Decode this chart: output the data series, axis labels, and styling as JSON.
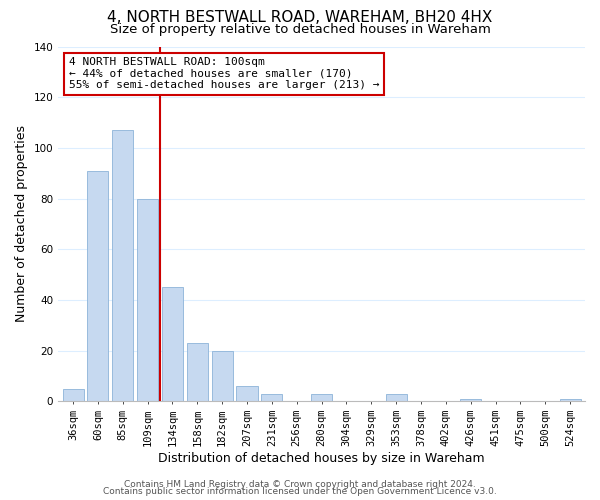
{
  "title": "4, NORTH BESTWALL ROAD, WAREHAM, BH20 4HX",
  "subtitle": "Size of property relative to detached houses in Wareham",
  "xlabel": "Distribution of detached houses by size in Wareham",
  "ylabel": "Number of detached properties",
  "bar_labels": [
    "36sqm",
    "60sqm",
    "85sqm",
    "109sqm",
    "134sqm",
    "158sqm",
    "182sqm",
    "207sqm",
    "231sqm",
    "256sqm",
    "280sqm",
    "304sqm",
    "329sqm",
    "353sqm",
    "378sqm",
    "402sqm",
    "426sqm",
    "451sqm",
    "475sqm",
    "500sqm",
    "524sqm"
  ],
  "bar_values": [
    5,
    91,
    107,
    80,
    45,
    23,
    20,
    6,
    3,
    0,
    3,
    0,
    0,
    3,
    0,
    0,
    1,
    0,
    0,
    0,
    1
  ],
  "bar_color": "#c6d9f0",
  "bar_edge_color": "#8db4d8",
  "vline_x": 3.5,
  "vline_color": "#cc0000",
  "annotation_text": "4 NORTH BESTWALL ROAD: 100sqm\n← 44% of detached houses are smaller (170)\n55% of semi-detached houses are larger (213) →",
  "annotation_box_color": "#ffffff",
  "annotation_box_edge": "#cc0000",
  "ylim": [
    0,
    140
  ],
  "yticks": [
    0,
    20,
    40,
    60,
    80,
    100,
    120,
    140
  ],
  "footer_line1": "Contains HM Land Registry data © Crown copyright and database right 2024.",
  "footer_line2": "Contains public sector information licensed under the Open Government Licence v3.0.",
  "background_color": "#ffffff",
  "grid_color": "#ddeeff",
  "title_fontsize": 11,
  "subtitle_fontsize": 9.5,
  "axis_label_fontsize": 9,
  "tick_fontsize": 7.5,
  "annotation_fontsize": 8,
  "footer_fontsize": 6.5
}
